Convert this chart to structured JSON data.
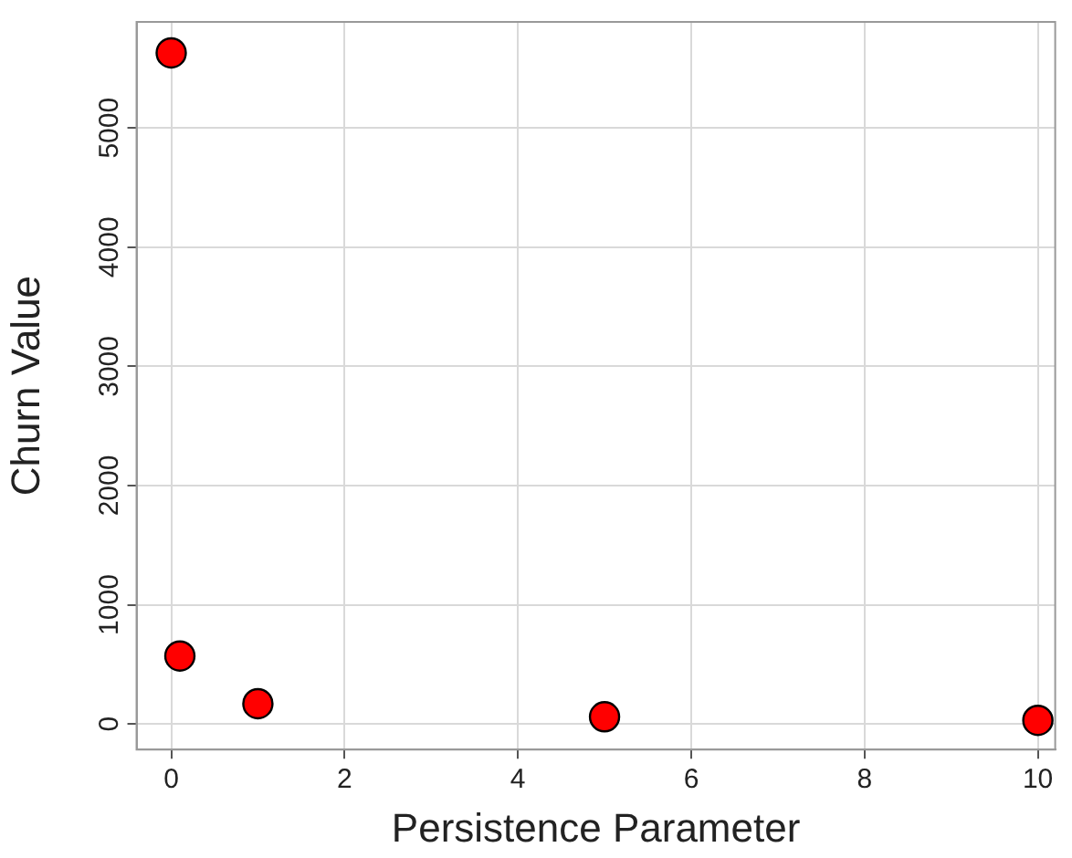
{
  "chart_data": {
    "type": "scatter",
    "xlabel": "Persistence Parameter",
    "ylabel": "Churn Value",
    "x": [
      0,
      0.1,
      1,
      5,
      10
    ],
    "series": [
      {
        "color": "#ff0000",
        "values": [
          5630,
          570,
          170,
          60,
          30
        ]
      }
    ],
    "xlim": [
      -0.4,
      10.2
    ],
    "xticks": [
      0,
      2,
      4,
      6,
      8,
      10
    ],
    "ylim": [
      -215,
      5890
    ],
    "yticks": [
      0,
      1000,
      2000,
      3000,
      4000,
      5000
    ],
    "grid": true,
    "legend": false,
    "marker": "circle"
  }
}
